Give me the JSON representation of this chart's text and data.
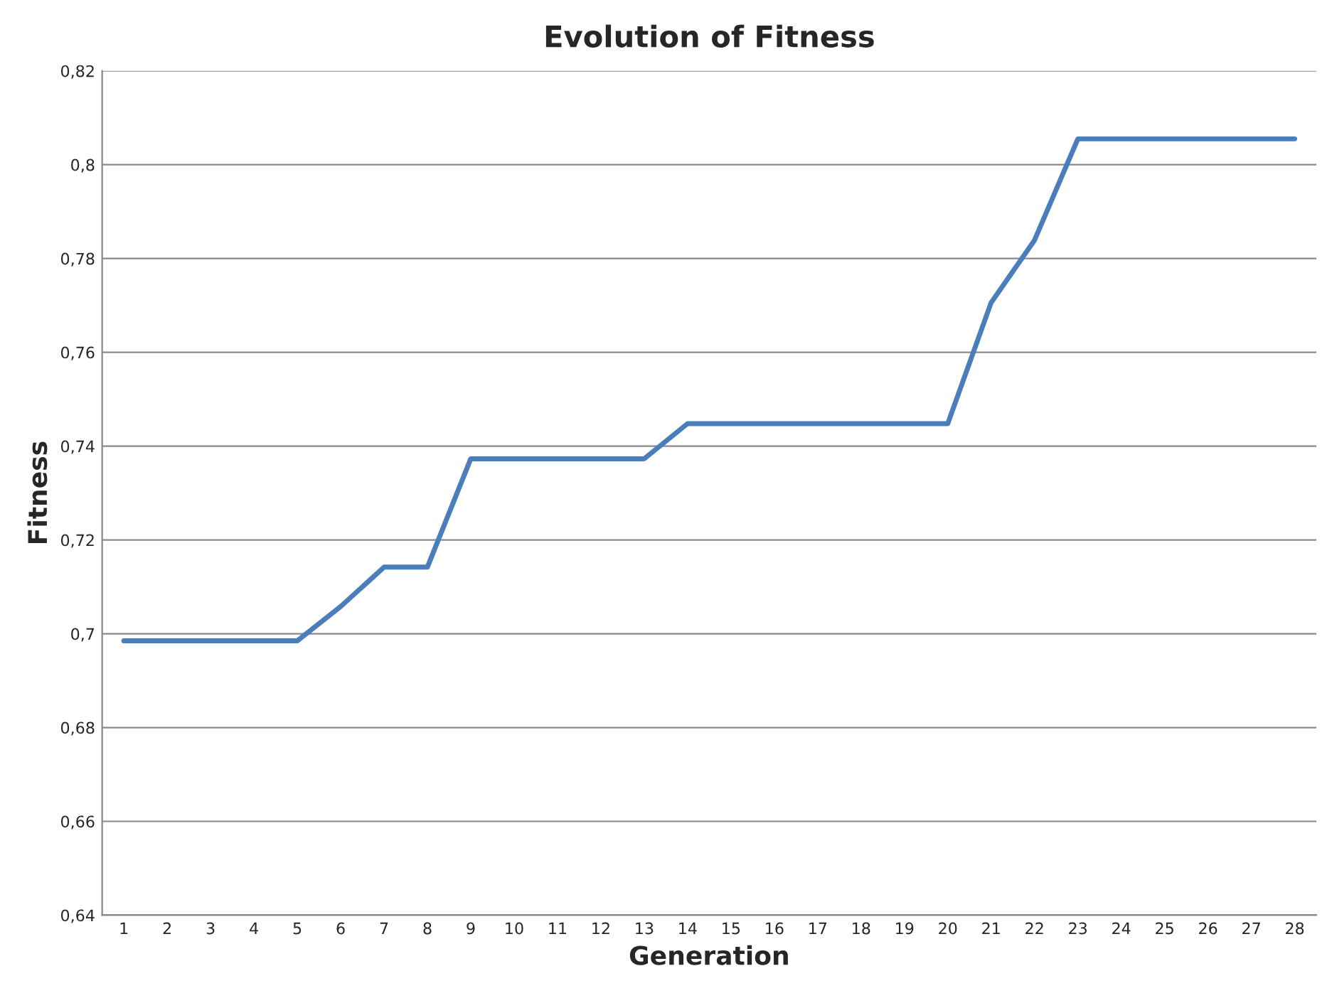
{
  "chart_data": {
    "type": "line",
    "title": "Evolution of Fitness",
    "xlabel": "Generation",
    "ylabel": "Fitness",
    "categories": [
      "1",
      "2",
      "3",
      "4",
      "5",
      "6",
      "7",
      "8",
      "9",
      "10",
      "11",
      "12",
      "13",
      "14",
      "15",
      "16",
      "17",
      "18",
      "19",
      "20",
      "21",
      "22",
      "23",
      "24",
      "25",
      "26",
      "27",
      "28"
    ],
    "series": [
      {
        "color": "#4a7ebb",
        "values": [
          0.6985,
          0.6985,
          0.6985,
          0.6985,
          0.6985,
          0.7058,
          0.7142,
          0.7142,
          0.7373,
          0.7373,
          0.7373,
          0.7373,
          0.7373,
          0.7448,
          0.7448,
          0.7448,
          0.7448,
          0.7448,
          0.7448,
          0.7448,
          0.7706,
          0.7839,
          0.8055,
          0.8055,
          0.8055,
          0.8055,
          0.8055,
          0.8055
        ]
      }
    ],
    "ylim": [
      0.64,
      0.82
    ],
    "yticks": [
      {
        "value": 0.64,
        "label": "0,64"
      },
      {
        "value": 0.66,
        "label": "0,66"
      },
      {
        "value": 0.68,
        "label": "0,68"
      },
      {
        "value": 0.7,
        "label": "0,7"
      },
      {
        "value": 0.72,
        "label": "0,72"
      },
      {
        "value": 0.74,
        "label": "0,74"
      },
      {
        "value": 0.76,
        "label": "0,76"
      },
      {
        "value": 0.78,
        "label": "0,78"
      },
      {
        "value": 0.8,
        "label": "0,8"
      },
      {
        "value": 0.82,
        "label": "0,82"
      }
    ],
    "grid": "y",
    "marker": "none",
    "line_style": "solid"
  }
}
